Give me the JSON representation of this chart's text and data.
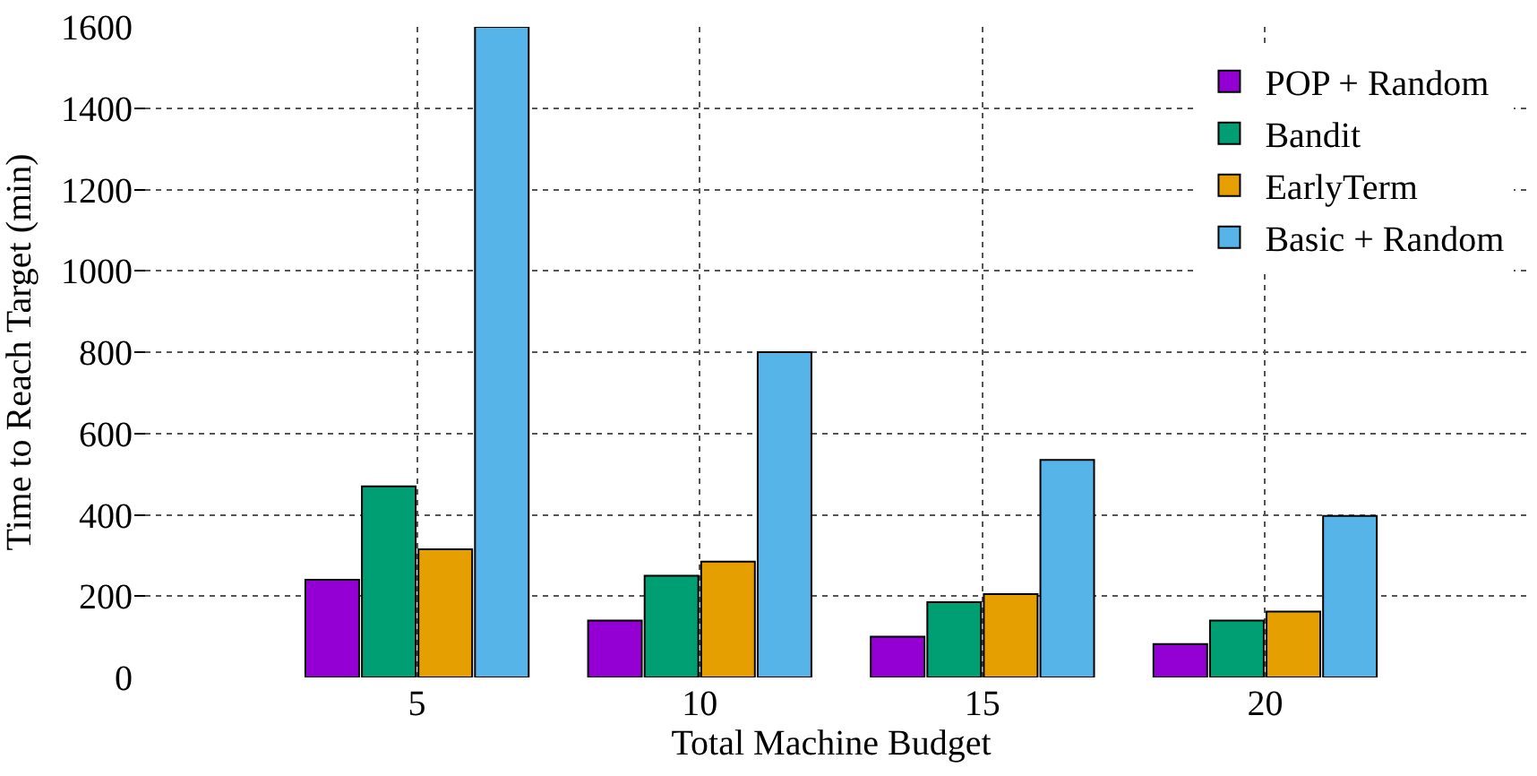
{
  "chart_data": {
    "type": "bar",
    "xlabel": "Total Machine Budget",
    "ylabel": "Time to Reach Target (min)",
    "categories": [
      "5",
      "10",
      "15",
      "20"
    ],
    "series": [
      {
        "name": "POP + Random",
        "color": "#9400d3",
        "values": [
          240,
          140,
          100,
          82
        ]
      },
      {
        "name": "Bandit",
        "color": "#009e73",
        "values": [
          470,
          250,
          185,
          140
        ]
      },
      {
        "name": "EarlyTerm",
        "color": "#e69f00",
        "values": [
          315,
          285,
          205,
          162
        ]
      },
      {
        "name": "Basic + Random",
        "color": "#56b4e9",
        "values": [
          1600,
          800,
          535,
          397
        ]
      }
    ],
    "ylim": [
      0,
      1600
    ],
    "yticks": [
      0,
      200,
      400,
      600,
      800,
      1000,
      1200,
      1400,
      1600
    ],
    "grid": true,
    "legend": "top right"
  }
}
